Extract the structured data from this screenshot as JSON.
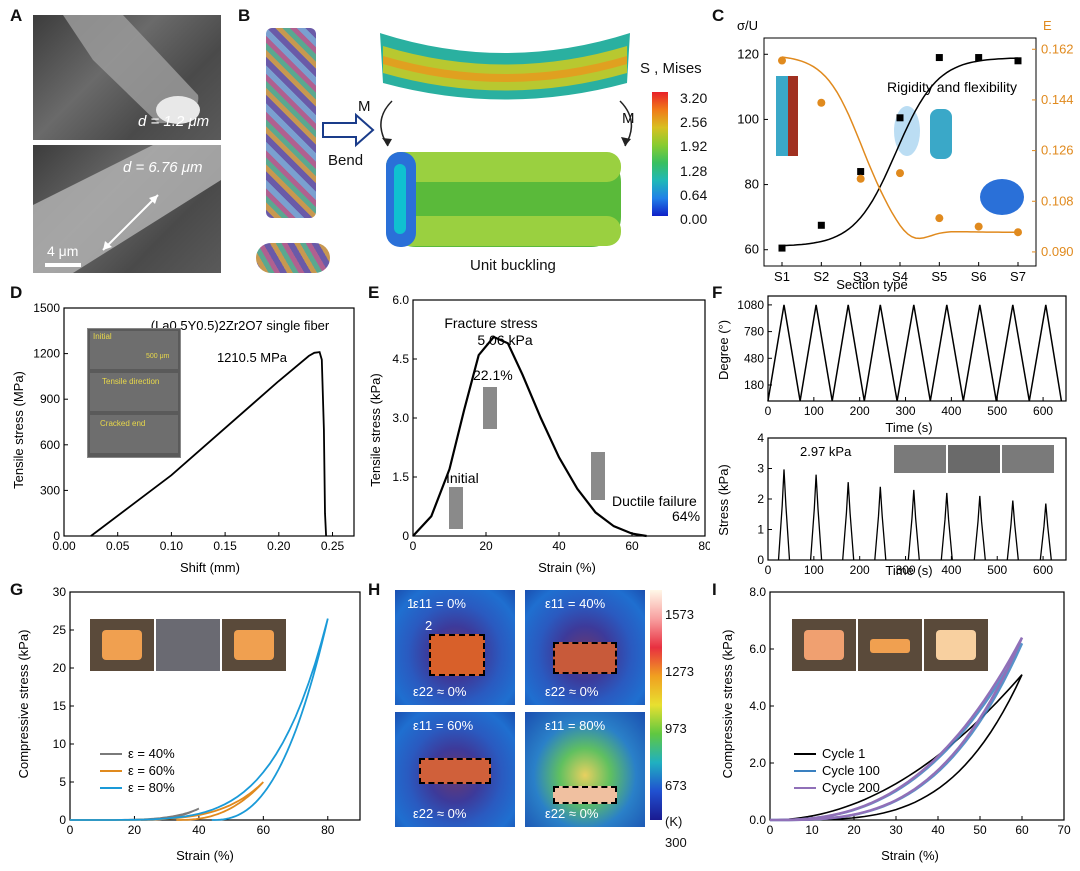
{
  "panels": {
    "A": {
      "letter": "A",
      "d1": "d = 1.2 μm",
      "d2": "d = 6.76 μm",
      "scale": "4 μm"
    },
    "B": {
      "letter": "B",
      "bend": "Bend",
      "m_left": "M",
      "m_right": "M",
      "legend_title": "S , Mises",
      "legend_values": [
        "3.20",
        "2.56",
        "1.92",
        "1.28",
        "0.64",
        "0.00"
      ],
      "legend_colors": [
        "#e8202a",
        "#f07a18",
        "#d8c020",
        "#88cc30",
        "#38c060",
        "#20b8b8",
        "#2080e8",
        "#1020c8"
      ],
      "caption": "Unit buckling"
    },
    "C": {
      "letter": "C",
      "left_axis": "σ/U",
      "right_axis": "E",
      "xlabel": "Section type",
      "annotation": "Rigidity and flexibility",
      "left_color": "#000000",
      "right_color": "#e08a1e"
    },
    "D": {
      "letter": "D",
      "title": "(La0.5Y0.5)2Zr2O7  single fiber",
      "peak": "1210.5 MPa",
      "ylabel": "Tensile stress (MPa)",
      "xlabel": "Shift (mm)",
      "inset": [
        "Initial",
        "Tensile direction",
        "Cracked end"
      ],
      "inset_scale": "500 μm"
    },
    "E": {
      "letter": "E",
      "ylabel": "Tensile stress (kPa)",
      "xlabel": "Strain (%)",
      "peak_label": "Fracture stress",
      "peak_value": "5.06 kPa",
      "strain_label": "22.1%",
      "initial": "Initial",
      "failure": "Ductile failure",
      "failure_pct": "64%"
    },
    "F": {
      "letter": "F",
      "top_ylabel": "Degree (°)",
      "top_xlabel": "Time (s)",
      "bottom_ylabel": "Stress (kPa)",
      "bottom_xlabel": "Time (s)",
      "peak": "2.97 kPa"
    },
    "G": {
      "letter": "G",
      "ylabel": "Compressive stress (kPa)",
      "xlabel": "Strain (%)"
    },
    "H": {
      "letter": "H",
      "colorbar_values": [
        "1573",
        "1273",
        "973",
        "673",
        "300"
      ],
      "unit": "(K)",
      "axis1": "1",
      "axis2": "2",
      "cells": [
        {
          "e11": "ε11 = 0%",
          "e22": "ε22 ≈ 0%"
        },
        {
          "e11": "ε11 = 40%",
          "e22": "ε22 ≈ 0%"
        },
        {
          "e11": "ε11 = 60%",
          "e22": "ε22 ≈ 0%"
        },
        {
          "e11": "ε11 = 80%",
          "e22": "ε22 ≈ 0%"
        }
      ]
    },
    "I": {
      "letter": "I",
      "ylabel": "Compressive stress (kPa)",
      "xlabel": "Strain (%)"
    }
  },
  "chart_data": [
    {
      "id": "C",
      "type": "scatter",
      "categories": [
        "S1",
        "S2",
        "S3",
        "S4",
        "S5",
        "S6",
        "S7"
      ],
      "series": [
        {
          "axis": "left",
          "values": [
            60.5,
            67.5,
            84,
            100.5,
            119,
            119,
            118
          ],
          "color": "#000000"
        },
        {
          "axis": "right",
          "values": [
            0.158,
            0.143,
            0.116,
            0.118,
            0.102,
            0.099,
            0.097
          ],
          "color": "#e08a1e"
        }
      ],
      "ylim": [
        55,
        125
      ],
      "y2lim": [
        0.085,
        0.166
      ],
      "yticks": [
        60,
        80,
        100,
        120
      ],
      "y2ticks": [
        "0.090",
        "0.108",
        "0.126",
        "0.144",
        "0.162"
      ]
    },
    {
      "id": "D",
      "type": "line",
      "xlim": [
        0,
        0.27
      ],
      "ylim": [
        0,
        1500
      ],
      "xticks": [
        "0.00",
        "0.05",
        "0.10",
        "0.15",
        "0.20",
        "0.25"
      ],
      "yticks": [
        "0",
        "300",
        "600",
        "900",
        "1200",
        "1500"
      ],
      "series": [
        {
          "x": [
            0.025,
            0.1,
            0.2,
            0.228,
            0.233,
            0.238,
            0.24,
            0.242,
            0.243,
            0.244
          ],
          "y": [
            0,
            400,
            1020,
            1185,
            1205,
            1210,
            1160,
            700,
            150,
            0
          ]
        }
      ]
    },
    {
      "id": "E",
      "type": "line",
      "xlim": [
        0,
        80
      ],
      "ylim": [
        0,
        6
      ],
      "xticks": [
        "0",
        "20",
        "40",
        "60",
        "80"
      ],
      "yticks": [
        "0",
        "1.5",
        "3.0",
        "4.5",
        "6.0"
      ],
      "series": [
        {
          "x": [
            0,
            5,
            10,
            14,
            18,
            22.1,
            26,
            30,
            35,
            40,
            45,
            50,
            55,
            60,
            64
          ],
          "y": [
            0,
            0.5,
            1.7,
            3.2,
            4.6,
            5.06,
            4.9,
            4.1,
            3.0,
            2.0,
            1.2,
            0.6,
            0.25,
            0.06,
            0
          ]
        }
      ]
    },
    {
      "id": "F-top",
      "type": "line",
      "xlim": [
        0,
        650
      ],
      "ylim": [
        0,
        1180
      ],
      "xticks": [
        "0",
        "100",
        "200",
        "300",
        "400",
        "500",
        "600"
      ],
      "yticks": [
        "180",
        "480",
        "780",
        "1080"
      ],
      "peaks": [
        35,
        105,
        175,
        245,
        318,
        390,
        462,
        534,
        606
      ]
    },
    {
      "id": "F-bottom",
      "type": "line",
      "xlim": [
        0,
        650
      ],
      "ylim": [
        0,
        4
      ],
      "xticks": [
        "0",
        "100",
        "200",
        "300",
        "400",
        "500",
        "600"
      ],
      "yticks": [
        "0",
        "1",
        "2",
        "3",
        "4"
      ],
      "peaks": [
        35,
        105,
        175,
        245,
        318,
        390,
        462,
        534,
        606
      ],
      "peak_values": [
        2.97,
        2.8,
        2.55,
        2.4,
        2.3,
        2.2,
        2.1,
        1.95,
        1.85
      ]
    },
    {
      "id": "G",
      "type": "line",
      "xlim": [
        0,
        90
      ],
      "ylim": [
        0,
        30
      ],
      "xticks": [
        "0",
        "20",
        "40",
        "60",
        "80"
      ],
      "yticks": [
        "0",
        "5",
        "10",
        "15",
        "20",
        "25",
        "30"
      ],
      "series": [
        {
          "name": "ε = 40%",
          "max_strain": 40,
          "max_stress": 1.5,
          "color": "#7a7a7a"
        },
        {
          "name": "ε = 60%",
          "max_strain": 60,
          "max_stress": 5.0,
          "color": "#e08a1e"
        },
        {
          "name": "ε = 80%",
          "max_strain": 80,
          "max_stress": 26.5,
          "color": "#1a9ad8"
        }
      ]
    },
    {
      "id": "I",
      "type": "line",
      "xlim": [
        0,
        70
      ],
      "ylim": [
        0,
        8
      ],
      "xticks": [
        "0",
        "10",
        "20",
        "30",
        "40",
        "50",
        "60",
        "70"
      ],
      "yticks": [
        "0.0",
        "2.0",
        "4.0",
        "6.0",
        "8.0"
      ],
      "series": [
        {
          "name": "Cycle 1",
          "max_strain": 60,
          "max_stress": 5.1,
          "color": "#000000"
        },
        {
          "name": "Cycle 100",
          "max_strain": 60,
          "max_stress": 6.2,
          "color": "#3a80c0"
        },
        {
          "name": "Cycle 200",
          "max_strain": 60,
          "max_stress": 6.4,
          "color": "#9070b8"
        }
      ]
    }
  ]
}
